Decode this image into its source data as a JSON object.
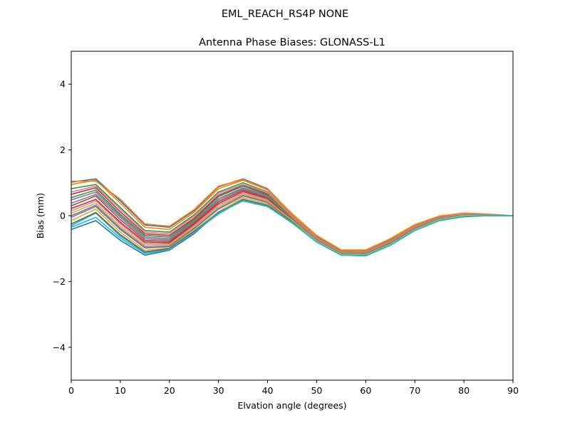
{
  "figure": {
    "suptitle": "EML_REACH_RS4P  NONE"
  },
  "chart_data": {
    "type": "line",
    "title": "Antenna Phase Biases: GLONASS-L1",
    "xlabel": "Elvation angle (degrees)",
    "ylabel": "Bias (mm)",
    "xlim": [
      0,
      90
    ],
    "ylim": [
      -5,
      5
    ],
    "xticks": [
      0,
      10,
      20,
      30,
      40,
      50,
      60,
      70,
      80,
      90
    ],
    "xtick_labels": [
      "0",
      "10",
      "20",
      "30",
      "40",
      "50",
      "60",
      "70",
      "80",
      "90"
    ],
    "yticks": [
      -4,
      -2,
      0,
      2,
      4
    ],
    "ytick_labels": [
      "−4",
      "−2",
      "0",
      "2",
      "4"
    ],
    "grid": false,
    "legend": "none",
    "colors": [
      "#1f77b4",
      "#ff7f0e",
      "#2ca02c",
      "#d62728",
      "#9467bd",
      "#8c564b",
      "#e377c2",
      "#7f7f7f",
      "#bcbd22",
      "#17becf"
    ],
    "x": [
      0,
      5,
      10,
      15,
      20,
      25,
      30,
      35,
      40,
      45,
      50,
      55,
      60,
      65,
      70,
      75,
      80,
      85,
      90
    ],
    "series": [
      {
        "values": [
          1.02,
          1.12,
          0.45,
          -0.28,
          -0.35,
          0.15,
          0.88,
          1.12,
          0.82,
          0.05,
          -0.62,
          -1.05,
          -1.05,
          -0.72,
          -0.28,
          -0.02,
          0.08,
          0.04,
          0.0
        ]
      },
      {
        "values": [
          0.95,
          1.08,
          0.38,
          -0.35,
          -0.42,
          0.1,
          0.82,
          1.08,
          0.78,
          0.02,
          -0.65,
          -1.08,
          -1.08,
          -0.75,
          -0.3,
          -0.03,
          0.07,
          0.04,
          0.0
        ]
      },
      {
        "values": [
          0.82,
          0.95,
          0.25,
          -0.45,
          -0.5,
          0.02,
          0.72,
          1.0,
          0.72,
          -0.02,
          -0.68,
          -1.1,
          -1.1,
          -0.78,
          -0.33,
          -0.05,
          0.05,
          0.03,
          0.0
        ]
      },
      {
        "values": [
          0.65,
          0.85,
          0.12,
          -0.55,
          -0.6,
          -0.08,
          0.62,
          0.92,
          0.66,
          -0.05,
          -0.7,
          -1.12,
          -1.12,
          -0.8,
          -0.35,
          -0.07,
          0.04,
          0.02,
          0.0
        ]
      },
      {
        "values": [
          0.48,
          0.72,
          0.0,
          -0.65,
          -0.7,
          -0.15,
          0.52,
          0.85,
          0.6,
          -0.08,
          -0.72,
          -1.14,
          -1.14,
          -0.82,
          -0.37,
          -0.08,
          0.03,
          0.02,
          0.0
        ]
      },
      {
        "values": [
          0.3,
          0.6,
          -0.12,
          -0.75,
          -0.78,
          -0.22,
          0.42,
          0.78,
          0.55,
          -0.1,
          -0.74,
          -1.16,
          -1.16,
          -0.84,
          -0.39,
          -0.1,
          0.02,
          0.01,
          0.0
        ]
      },
      {
        "values": [
          0.15,
          0.45,
          -0.25,
          -0.85,
          -0.85,
          -0.3,
          0.32,
          0.7,
          0.48,
          -0.13,
          -0.76,
          -1.17,
          -1.18,
          -0.86,
          -0.41,
          -0.11,
          0.01,
          0.01,
          0.0
        ]
      },
      {
        "values": [
          0.0,
          0.32,
          -0.38,
          -0.95,
          -0.92,
          -0.38,
          0.22,
          0.62,
          0.42,
          -0.15,
          -0.78,
          -1.18,
          -1.19,
          -0.88,
          -0.43,
          -0.13,
          0.0,
          0.0,
          0.0
        ]
      },
      {
        "values": [
          -0.15,
          0.2,
          -0.5,
          -1.05,
          -0.98,
          -0.45,
          0.12,
          0.55,
          0.36,
          -0.18,
          -0.8,
          -1.19,
          -1.2,
          -0.9,
          -0.45,
          -0.15,
          -0.01,
          0.0,
          0.0
        ]
      },
      {
        "values": [
          -0.3,
          0.08,
          -0.62,
          -1.12,
          -1.02,
          -0.5,
          0.05,
          0.48,
          0.3,
          -0.2,
          -0.8,
          -1.2,
          -1.21,
          -0.9,
          -0.45,
          -0.15,
          -0.02,
          0.0,
          0.0
        ]
      },
      {
        "values": [
          -0.42,
          -0.15,
          -0.75,
          -1.2,
          -1.05,
          -0.55,
          0.1,
          0.45,
          0.28,
          -0.22,
          -0.8,
          -1.2,
          -1.22,
          -0.9,
          -0.45,
          -0.15,
          -0.03,
          0.0,
          0.0
        ]
      },
      {
        "values": [
          1.05,
          1.05,
          0.5,
          -0.25,
          -0.32,
          0.18,
          0.9,
          1.1,
          0.8,
          0.06,
          -0.6,
          -1.04,
          -1.04,
          -0.7,
          -0.27,
          -0.01,
          0.08,
          0.05,
          0.0
        ]
      },
      {
        "values": [
          0.55,
          0.78,
          0.05,
          -0.6,
          -0.65,
          -0.12,
          0.58,
          0.9,
          0.63,
          -0.06,
          -0.71,
          -1.13,
          -1.13,
          -0.81,
          -0.36,
          -0.07,
          0.04,
          0.02,
          0.0
        ]
      },
      {
        "values": [
          0.22,
          0.5,
          -0.2,
          -0.8,
          -0.82,
          -0.26,
          0.37,
          0.74,
          0.52,
          -0.11,
          -0.75,
          -1.16,
          -1.17,
          -0.85,
          -0.4,
          -0.1,
          0.02,
          0.01,
          0.0
        ]
      },
      {
        "values": [
          -0.05,
          0.28,
          -0.42,
          -0.98,
          -0.94,
          -0.4,
          0.2,
          0.6,
          0.4,
          -0.16,
          -0.78,
          -1.18,
          -1.19,
          -0.88,
          -0.43,
          -0.13,
          0.0,
          0.0,
          0.0
        ]
      },
      {
        "values": [
          -0.25,
          0.1,
          -0.58,
          -1.1,
          -1.0,
          -0.48,
          0.08,
          0.5,
          0.32,
          -0.19,
          -0.79,
          -1.19,
          -1.2,
          -0.89,
          -0.44,
          -0.14,
          -0.01,
          0.0,
          0.0
        ]
      },
      {
        "values": [
          0.72,
          0.9,
          0.2,
          -0.5,
          -0.55,
          -0.02,
          0.68,
          0.95,
          0.7,
          -0.03,
          -0.69,
          -1.11,
          -1.11,
          -0.79,
          -0.34,
          -0.06,
          0.05,
          0.03,
          0.0
        ]
      },
      {
        "values": [
          0.38,
          0.65,
          -0.05,
          -0.7,
          -0.74,
          -0.18,
          0.47,
          0.82,
          0.57,
          -0.09,
          -0.73,
          -1.15,
          -1.15,
          -0.83,
          -0.38,
          -0.09,
          0.03,
          0.02,
          0.0
        ]
      },
      {
        "values": [
          0.08,
          0.38,
          -0.32,
          -0.9,
          -0.88,
          -0.34,
          0.27,
          0.66,
          0.45,
          -0.14,
          -0.77,
          -1.17,
          -1.18,
          -0.87,
          -0.42,
          -0.12,
          0.01,
          0.01,
          0.0
        ]
      },
      {
        "values": [
          -0.35,
          -0.05,
          -0.68,
          -1.15,
          -1.03,
          -0.52,
          0.07,
          0.46,
          0.29,
          -0.21,
          -0.8,
          -1.2,
          -1.21,
          -0.9,
          -0.45,
          -0.15,
          -0.02,
          0.0,
          0.0
        ]
      }
    ]
  }
}
